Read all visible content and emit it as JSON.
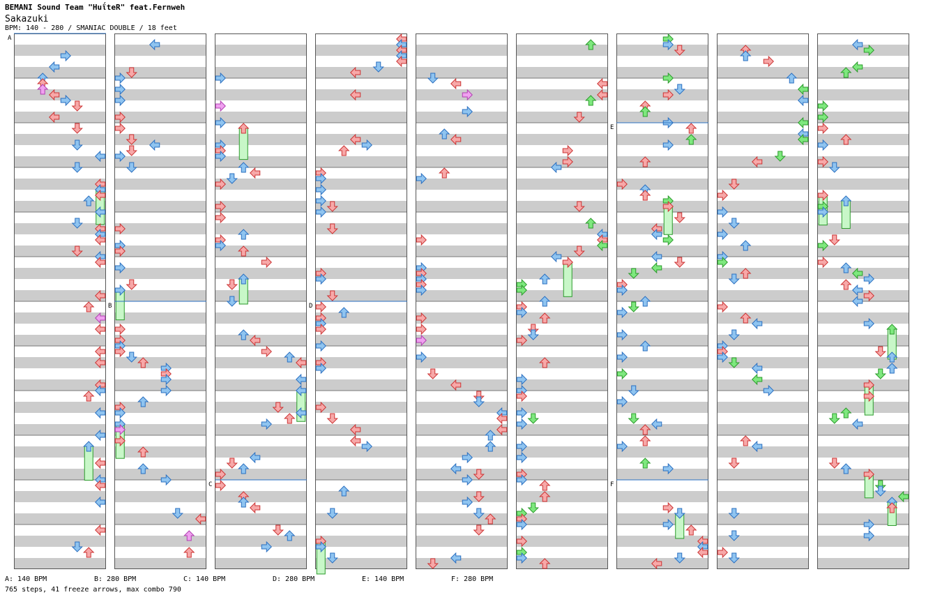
{
  "header": {
    "title": "BEMANI Sound Team \"HuΐteR\" feat.Fernweh",
    "song": "Sakazuki",
    "info": "BPM: 140 - 280 / SMANIAC DOUBLE / 18 feet"
  },
  "bpm_legend": [
    {
      "letter": "A",
      "text": "A: 140 BPM"
    },
    {
      "letter": "B",
      "text": "B: 280 BPM"
    },
    {
      "letter": "C",
      "text": "C: 140 BPM"
    },
    {
      "letter": "D",
      "text": "D: 280 BPM"
    },
    {
      "letter": "E",
      "text": "E: 140 BPM"
    },
    {
      "letter": "F",
      "text": "F: 280 BPM"
    }
  ],
  "bpm_markers": [
    {
      "column": 1,
      "measure": 0,
      "label": "A"
    },
    {
      "column": 2,
      "measure": 6,
      "label": "B"
    },
    {
      "column": 3,
      "measure": 10,
      "label": "C"
    },
    {
      "column": 4,
      "measure": 6,
      "label": "D"
    },
    {
      "column": 7,
      "measure": 2,
      "label": "E"
    },
    {
      "column": 7,
      "measure": 10,
      "label": "F"
    }
  ],
  "footer": {
    "stats": "765 steps, 41 freeze arrows, max combo 790"
  },
  "chart": {
    "columns": 9,
    "measures_per_column": 12,
    "lanes": 8,
    "colors": {
      "quarter": "#f7a8a8",
      "eighth": "#8fc4f0",
      "twelfth": "#f0a0f0",
      "sixteenth": "#7ee87e",
      "freeze": "#c8f7c8",
      "stroke_red": "#cc3333",
      "stroke_blue": "#2a6fc0",
      "stroke_pink": "#b040b0",
      "stroke_green": "#2a9a2a",
      "stripe": "#cccccc",
      "bpm_line": "#2a6fc0"
    }
  }
}
